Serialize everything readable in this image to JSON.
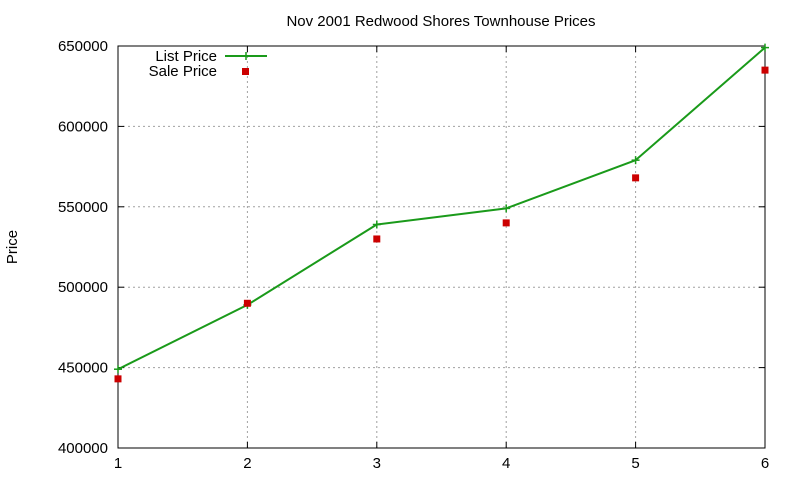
{
  "chart_data": {
    "type": "line",
    "title": "Nov 2001 Redwood Shores Townhouse Prices",
    "xlabel": "",
    "ylabel": "Price",
    "x": [
      1,
      2,
      3,
      4,
      5,
      6
    ],
    "xlim": [
      1,
      6
    ],
    "ylim": [
      400000,
      650000
    ],
    "x_ticks": [
      "1",
      "2",
      "3",
      "4",
      "5",
      "6"
    ],
    "y_ticks": [
      "400000",
      "450000",
      "500000",
      "550000",
      "600000",
      "650000"
    ],
    "grid": true,
    "legend_position": "top-left",
    "series": [
      {
        "name": "List Price",
        "style": "line-with-plus-markers",
        "color": "#1a9a1a",
        "values": [
          449000,
          489000,
          539000,
          549000,
          579000,
          649000
        ]
      },
      {
        "name": "Sale Price",
        "style": "square-markers",
        "color": "#cc0000",
        "values": [
          443000,
          490000,
          530000,
          540000,
          568000,
          635000
        ]
      }
    ]
  }
}
